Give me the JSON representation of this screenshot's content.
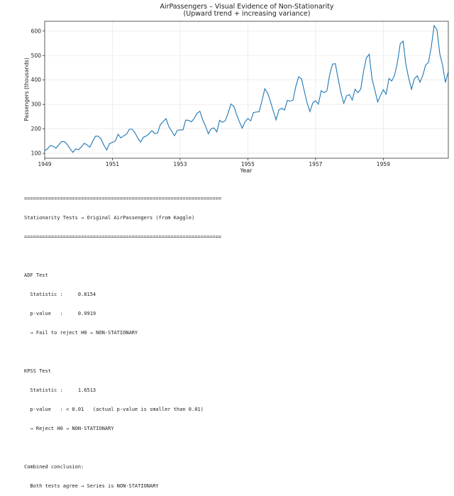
{
  "chart_data": {
    "type": "line",
    "title": "AirPassengers – Visual Evidence of Non-Stationarity",
    "subtitle": "(Upward trend + increasing variance)",
    "xlabel": "Year",
    "ylabel": "Passengers (thousands)",
    "xlim": [
      1949,
      1960.92
    ],
    "ylim": [
      80,
      640
    ],
    "xticks": [
      "1949",
      "1951",
      "1953",
      "1955",
      "1957",
      "1959"
    ],
    "yticks": [
      100,
      200,
      300,
      400,
      500,
      600
    ],
    "grid": true,
    "line_color": "#1f77b4",
    "series": [
      {
        "start": "1949-01",
        "frequency": "monthly",
        "values": [
          112,
          118,
          132,
          129,
          121,
          135,
          148,
          148,
          136,
          119,
          104,
          118,
          115,
          126,
          141,
          135,
          125,
          149,
          170,
          170,
          158,
          133,
          114,
          140,
          145,
          150,
          178,
          163,
          172,
          178,
          199,
          199,
          184,
          162,
          146,
          166,
          171,
          180,
          193,
          181,
          183,
          218,
          230,
          242,
          209,
          191,
          172,
          194,
          196,
          196,
          236,
          235,
          229,
          243,
          264,
          272,
          237,
          211,
          180,
          201,
          204,
          188,
          235,
          227,
          234,
          264,
          302,
          293,
          259,
          229,
          203,
          229,
          242,
          233,
          267,
          269,
          270,
          315,
          364,
          347,
          312,
          274,
          237,
          278,
          284,
          277,
          317,
          313,
          318,
          374,
          413,
          405,
          355,
          306,
          271,
          306,
          315,
          301,
          356,
          348,
          355,
          422,
          465,
          467,
          404,
          347,
          305,
          336,
          340,
          318,
          362,
          348,
          363,
          435,
          491,
          505,
          404,
          359,
          310,
          337,
          360,
          342,
          406,
          396,
          420,
          472,
          548,
          559,
          463,
          407,
          362,
          405,
          417,
          391,
          419,
          461,
          472,
          535,
          622,
          606,
          508,
          461,
          390,
          432
        ]
      }
    ]
  },
  "console": {
    "separator": "==================================================================",
    "header": "Stationarity Tests → Original AirPassengers (from Kaggle)",
    "adf_title": "ADF Test",
    "adf_statistic": "  Statistic :     0.8154",
    "adf_pvalue": "  p-value   :     0.9919",
    "adf_result": "  → Fail to reject H0 → NON-STATIONARY",
    "kpss_title": "KPSS Test",
    "kpss_statistic": "  Statistic :     1.6513",
    "kpss_pvalue": "  p-value   : < 0.01   (actual p-value is smaller than 0.01)",
    "kpss_result": "  → Reject H0 → NON-STATIONARY",
    "combined_title": "Combined conclusion:",
    "combined_result": "  Both tests agree → Series is NON-STATIONARY"
  }
}
